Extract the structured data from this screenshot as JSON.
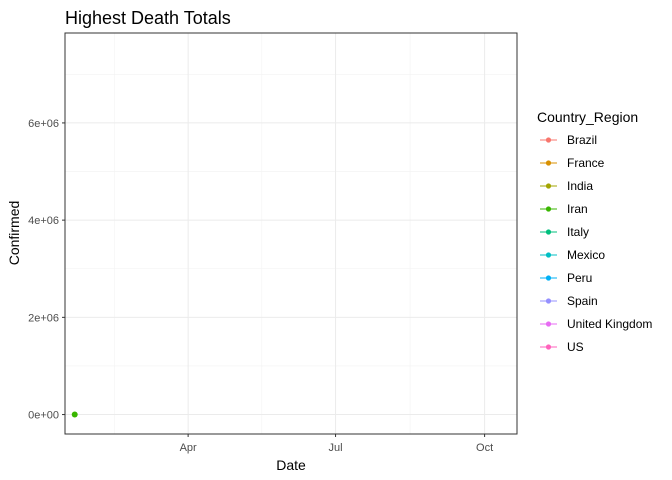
{
  "chart_data": {
    "type": "line",
    "title": "Highest Death Totals",
    "xlabel": "Date",
    "ylabel": "Confirmed",
    "x_ticks": [
      "Apr",
      "Jul",
      "Oct"
    ],
    "y_ticks": [
      "0e+00",
      "2e+06",
      "4e+06",
      "6e+06"
    ],
    "ylim": [
      -400000,
      7850000
    ],
    "xlim": [
      "2020-01-16",
      "2020-10-21"
    ],
    "legend_title": "Country_Region",
    "legend_position": "right",
    "grid": true,
    "series": [
      {
        "name": "Brazil",
        "color": "#F8766D",
        "points": []
      },
      {
        "name": "France",
        "color": "#D89000",
        "points": []
      },
      {
        "name": "India",
        "color": "#A3A500",
        "points": []
      },
      {
        "name": "Iran",
        "color": "#39B600",
        "points": [
          {
            "x": "2020-01-22",
            "y": 0
          }
        ]
      },
      {
        "name": "Italy",
        "color": "#00BF7D",
        "points": []
      },
      {
        "name": "Mexico",
        "color": "#00BFC4",
        "points": []
      },
      {
        "name": "Peru",
        "color": "#00B0F6",
        "points": []
      },
      {
        "name": "Spain",
        "color": "#9590FF",
        "points": []
      },
      {
        "name": "United Kingdom",
        "color": "#E76BF3",
        "points": []
      },
      {
        "name": "US",
        "color": "#FF62BC",
        "points": []
      }
    ]
  }
}
